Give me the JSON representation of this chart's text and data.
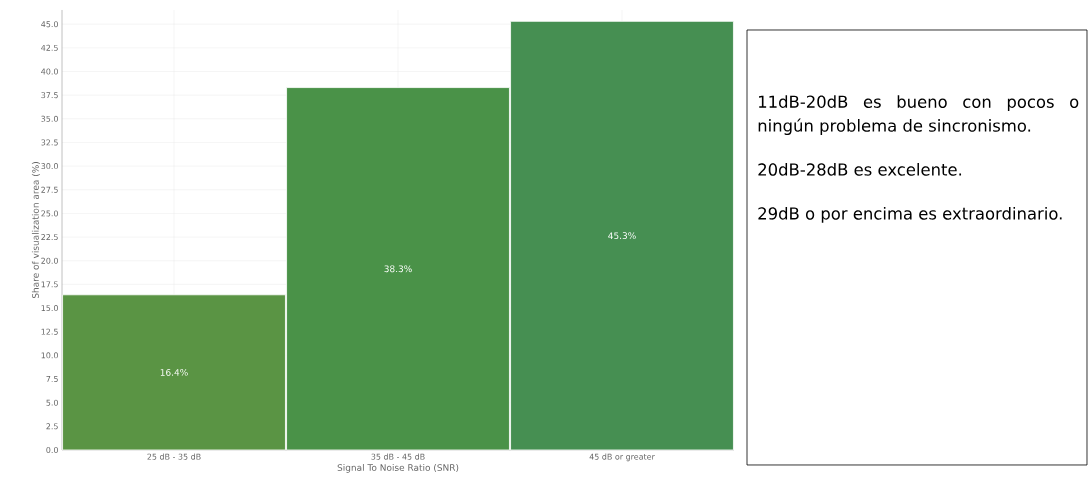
{
  "chart_data": {
    "type": "bar",
    "xlabel": "Signal To Noise Ratio (SNR)",
    "ylabel": "Share of visualization area (%)",
    "categories": [
      "25 dB - 35 dB",
      "35 dB - 45 dB",
      "45 dB or greater"
    ],
    "values": [
      16.4,
      38.3,
      45.3
    ],
    "colors": [
      "#5a9444",
      "#4a9248",
      "#468f52"
    ],
    "value_labels": [
      "16.4%",
      "38.3%",
      "45.3%"
    ],
    "ylim": [
      0,
      46.5
    ],
    "yticks": [
      {
        "value": 0,
        "label": "0.0"
      },
      {
        "value": 2.5,
        "label": "2.5"
      },
      {
        "value": 5,
        "label": "5.0"
      },
      {
        "value": 7.5,
        "label": "7.5"
      },
      {
        "value": 10,
        "label": "10.0"
      },
      {
        "value": 12.5,
        "label": "12.5"
      },
      {
        "value": 15,
        "label": "15.0"
      },
      {
        "value": 17.5,
        "label": "17.5"
      },
      {
        "value": 20,
        "label": "20.0"
      },
      {
        "value": 22.5,
        "label": "22.5"
      },
      {
        "value": 25,
        "label": "25.0"
      },
      {
        "value": 27.5,
        "label": "27.5"
      },
      {
        "value": 30,
        "label": "30.0"
      },
      {
        "value": 32.5,
        "label": "32.5"
      },
      {
        "value": 35,
        "label": "35.0"
      },
      {
        "value": 37.5,
        "label": "37.5"
      },
      {
        "value": 40,
        "label": "40.0"
      },
      {
        "value": 42.5,
        "label": "42.5"
      },
      {
        "value": 45,
        "label": "45.0"
      }
    ],
    "grid": true,
    "annotations": [
      "11dB-20dB es bueno con pocos o ningún problema de sincronismo.",
      "20dB-28dB es excelente.",
      "29dB o por encima es extraordinario."
    ]
  }
}
